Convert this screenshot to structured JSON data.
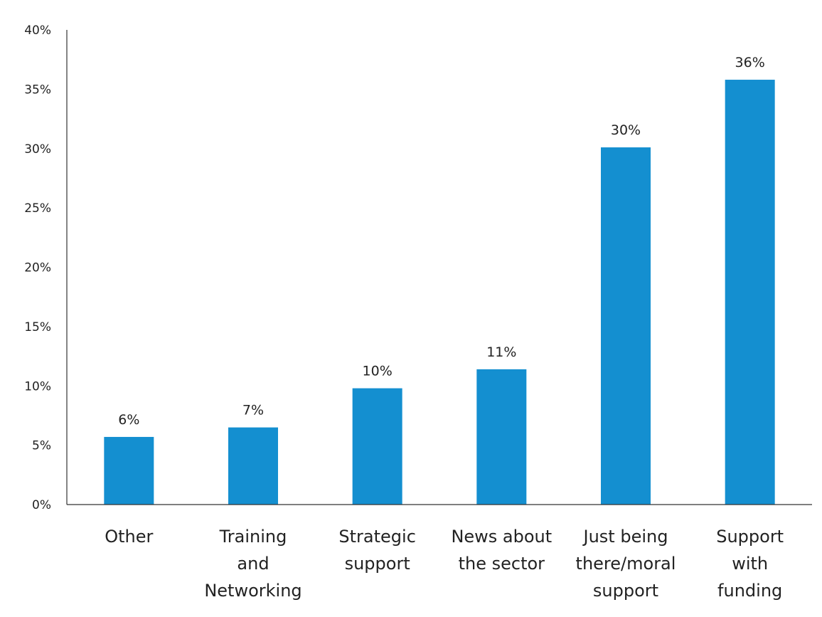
{
  "chart_data": {
    "type": "bar",
    "categories": [
      [
        "Other"
      ],
      [
        "Training",
        "and",
        "Networking"
      ],
      [
        "Strategic",
        "support"
      ],
      [
        "News about",
        "the sector"
      ],
      [
        "Just being",
        "there/moral",
        "support"
      ],
      [
        "Support",
        "with",
        "funding"
      ]
    ],
    "values": [
      5.7,
      6.5,
      9.8,
      11.4,
      30.1,
      35.8
    ],
    "data_labels": [
      "6%",
      "7%",
      "10%",
      "11%",
      "30%",
      "36%"
    ],
    "ylim": [
      0,
      40
    ],
    "y_ticks": [
      0,
      5,
      10,
      15,
      20,
      25,
      30,
      35,
      40
    ],
    "y_tick_labels": [
      "0%",
      "5%",
      "10%",
      "15%",
      "20%",
      "25%",
      "30%",
      "35%",
      "40%"
    ],
    "title": "",
    "xlabel": "",
    "ylabel": "",
    "grid": false,
    "legend": "none",
    "colors": {
      "bar": "#148fd0",
      "axis": "#333333",
      "text": "#222222"
    }
  }
}
